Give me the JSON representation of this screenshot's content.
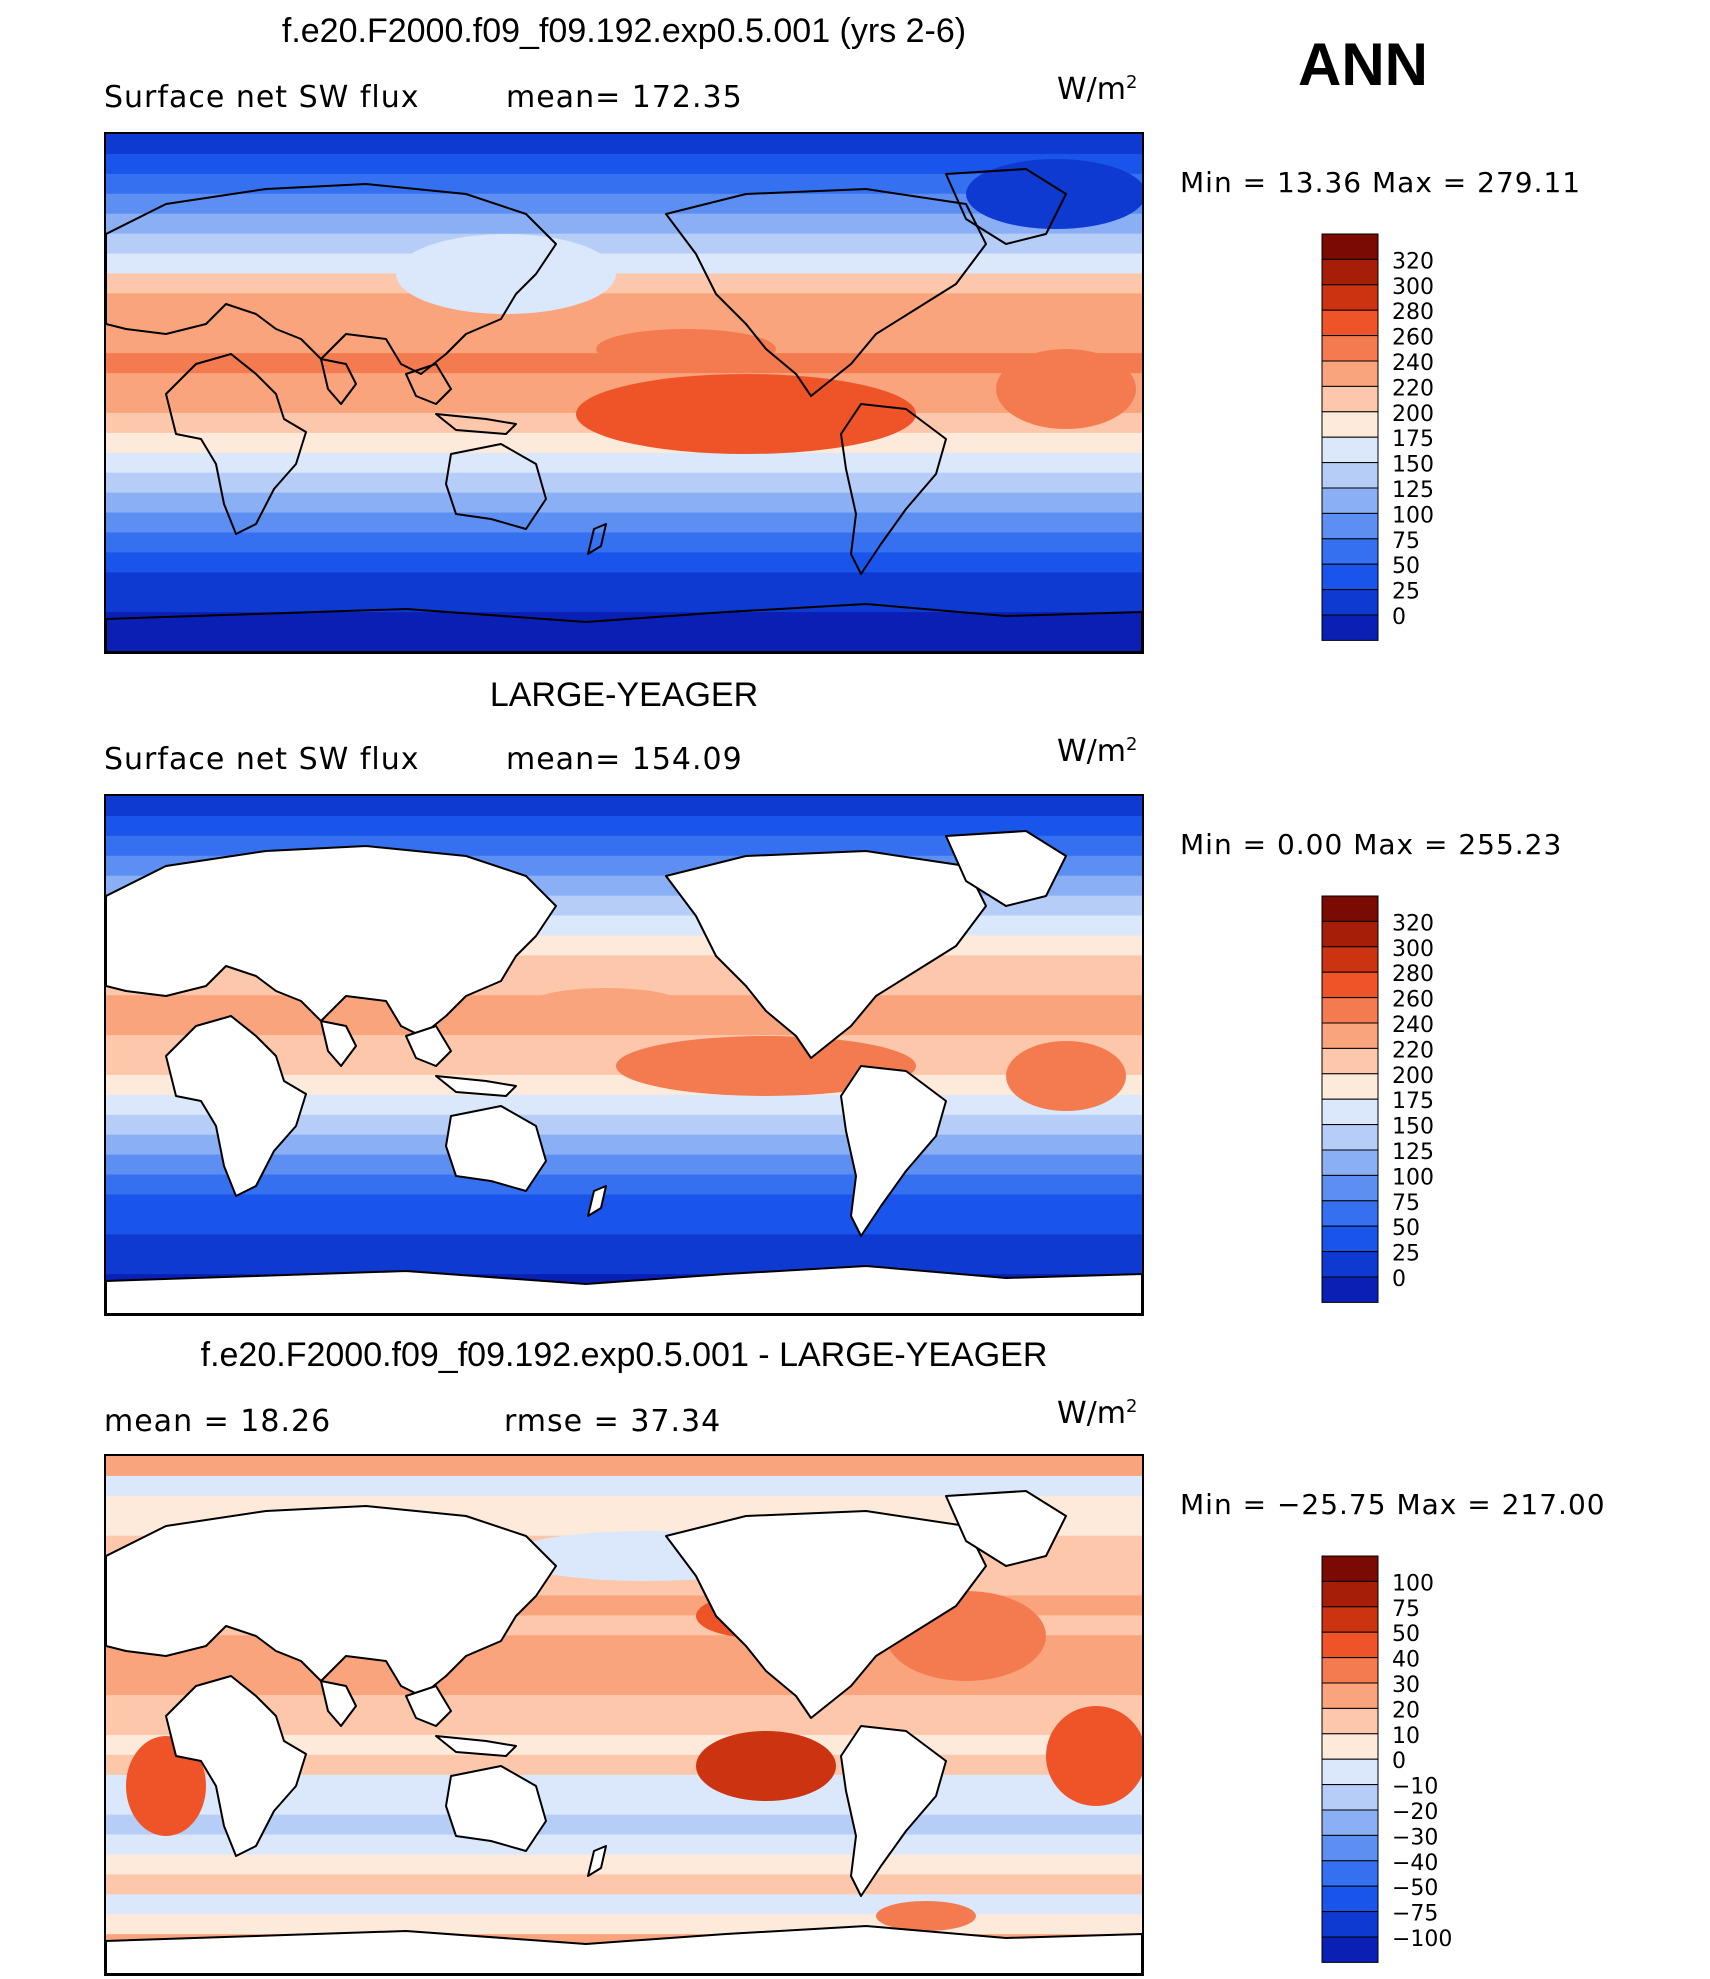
{
  "season": "ANN",
  "units": "W/m",
  "units_sup": "2",
  "panels": [
    {
      "title": "f.e20.F2000.f09_f09.192.exp0.5.001 (yrs 2-6)",
      "left_label": "Surface net SW flux",
      "right_label": "mean=  172.35",
      "minmax": "Min  =    13.36  Max  =  279.11"
    },
    {
      "title": "LARGE-YEAGER",
      "left_label": "Surface net SW flux",
      "right_label": "mean=  154.09",
      "minmax": "Min  =     0.00  Max  =  255.23"
    },
    {
      "title": "f.e20.F2000.f09_f09.192.exp0.5.001 - LARGE-YEAGER",
      "left_label": "mean  =    18.26",
      "right_label": "rmse  =    37.34",
      "minmax": "Min  = −25.75  Max  =  217.00"
    }
  ],
  "colors": {
    "scale15": [
      "#00008b",
      "#0a1fb4",
      "#0f3ad2",
      "#1a55eb",
      "#3570f0",
      "#5d8ff2",
      "#8aaff4",
      "#b6cdf8",
      "#dbe8fb",
      "#fdeadb",
      "#fcc7aa",
      "#f9a47d",
      "#f47b4f",
      "#ee5428",
      "#cc3310",
      "#a61e07",
      "#7a0a02"
    ],
    "land": "#ffffff"
  },
  "chart_data": [
    {
      "type": "heatmap",
      "panel": "model",
      "title": "f.e20.F2000.f09_f09.192.exp0.5.001 (yrs 2-6)",
      "variable": "Surface net SW flux",
      "units": "W/m2",
      "mean": 172.35,
      "min": 13.36,
      "max": 279.11,
      "colorbar_levels": [
        "320",
        "300",
        "280",
        "260",
        "240",
        "220",
        "200",
        "175",
        "150",
        "125",
        "100",
        "75",
        "50",
        "25",
        "0"
      ]
    },
    {
      "type": "heatmap",
      "panel": "observations",
      "title": "LARGE-YEAGER",
      "variable": "Surface net SW flux",
      "units": "W/m2",
      "mean": 154.09,
      "min": 0.0,
      "max": 255.23,
      "colorbar_levels": [
        "320",
        "300",
        "280",
        "260",
        "240",
        "220",
        "200",
        "175",
        "150",
        "125",
        "100",
        "75",
        "50",
        "25",
        "0"
      ]
    },
    {
      "type": "heatmap",
      "panel": "difference",
      "title": "f.e20.F2000.f09_f09.192.exp0.5.001 - LARGE-YEAGER",
      "units": "W/m2",
      "mean": 18.26,
      "rmse": 37.34,
      "min": -25.75,
      "max": 217.0,
      "colorbar_levels": [
        "100",
        "75",
        "50",
        "40",
        "30",
        "20",
        "10",
        "0",
        "−10",
        "−20",
        "−30",
        "−40",
        "−50",
        "−75",
        "−100"
      ]
    }
  ]
}
